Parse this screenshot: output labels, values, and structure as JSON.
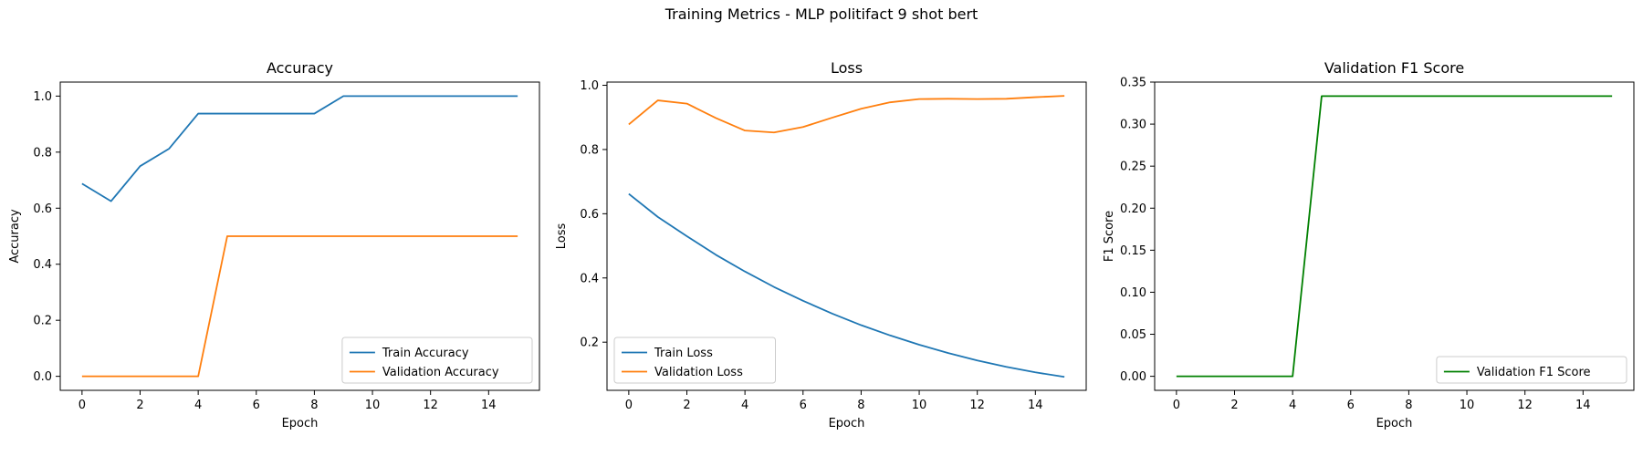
{
  "suptitle": "Training Metrics - MLP politifact 9 shot bert",
  "chart_data": [
    {
      "type": "line",
      "title": "Accuracy",
      "xlabel": "Epoch",
      "ylabel": "Accuracy",
      "xlim": [
        -0.75,
        15.75
      ],
      "ylim": [
        -0.05,
        1.05
      ],
      "xticks": [
        0,
        2,
        4,
        6,
        8,
        10,
        12,
        14
      ],
      "yticks": [
        0.0,
        0.2,
        0.4,
        0.6,
        0.8,
        1.0
      ],
      "ytick_labels": [
        "0.0",
        "0.2",
        "0.4",
        "0.6",
        "0.8",
        "1.0"
      ],
      "legend_loc": "lower-right",
      "grid": false,
      "series": [
        {
          "name": "Train Accuracy",
          "color": "#1f77b4",
          "x": [
            0,
            1,
            2,
            3,
            4,
            5,
            6,
            7,
            8,
            9,
            10,
            11,
            12,
            13,
            14,
            15
          ],
          "y": [
            0.6875,
            0.625,
            0.75,
            0.8125,
            0.9375,
            0.9375,
            0.9375,
            0.9375,
            0.9375,
            1.0,
            1.0,
            1.0,
            1.0,
            1.0,
            1.0,
            1.0
          ]
        },
        {
          "name": "Validation Accuracy",
          "color": "#ff7f0e",
          "x": [
            0,
            1,
            2,
            3,
            4,
            5,
            6,
            7,
            8,
            9,
            10,
            11,
            12,
            13,
            14,
            15
          ],
          "y": [
            0.0,
            0.0,
            0.0,
            0.0,
            0.0,
            0.5,
            0.5,
            0.5,
            0.5,
            0.5,
            0.5,
            0.5,
            0.5,
            0.5,
            0.5,
            0.5
          ]
        }
      ]
    },
    {
      "type": "line",
      "title": "Loss",
      "xlabel": "Epoch",
      "ylabel": "Loss",
      "xlim": [
        -0.75,
        15.75
      ],
      "ylim": [
        0.05,
        1.01
      ],
      "xticks": [
        0,
        2,
        4,
        6,
        8,
        10,
        12,
        14
      ],
      "yticks": [
        0.2,
        0.4,
        0.6,
        0.8,
        1.0
      ],
      "ytick_labels": [
        "0.2",
        "0.4",
        "0.6",
        "0.8",
        "1.0"
      ],
      "legend_loc": "lower-left",
      "grid": false,
      "series": [
        {
          "name": "Train Loss",
          "color": "#1f77b4",
          "x": [
            0,
            1,
            2,
            3,
            4,
            5,
            6,
            7,
            8,
            9,
            10,
            11,
            12,
            13,
            14,
            15
          ],
          "y": [
            0.662,
            0.59,
            0.53,
            0.472,
            0.42,
            0.372,
            0.329,
            0.289,
            0.253,
            0.221,
            0.192,
            0.166,
            0.143,
            0.123,
            0.106,
            0.092
          ]
        },
        {
          "name": "Validation Loss",
          "color": "#ff7f0e",
          "x": [
            0,
            1,
            2,
            3,
            4,
            5,
            6,
            7,
            8,
            9,
            10,
            11,
            12,
            13,
            14,
            15
          ],
          "y": [
            0.878,
            0.953,
            0.943,
            0.898,
            0.859,
            0.853,
            0.87,
            0.899,
            0.927,
            0.947,
            0.957,
            0.958,
            0.957,
            0.958,
            0.963,
            0.967
          ]
        }
      ]
    },
    {
      "type": "line",
      "title": "Validation F1 Score",
      "xlabel": "Epoch",
      "ylabel": "F1 Score",
      "xlim": [
        -0.75,
        15.75
      ],
      "ylim": [
        -0.0167,
        0.35
      ],
      "xticks": [
        0,
        2,
        4,
        6,
        8,
        10,
        12,
        14
      ],
      "yticks": [
        0.0,
        0.05,
        0.1,
        0.15,
        0.2,
        0.25,
        0.3,
        0.35
      ],
      "ytick_labels": [
        "0.00",
        "0.05",
        "0.10",
        "0.15",
        "0.20",
        "0.25",
        "0.30",
        "0.35"
      ],
      "legend_loc": "lower-right",
      "grid": false,
      "series": [
        {
          "name": "Validation F1 Score",
          "color": "#008000",
          "x": [
            0,
            1,
            2,
            3,
            4,
            5,
            6,
            7,
            8,
            9,
            10,
            11,
            12,
            13,
            14,
            15
          ],
          "y": [
            0.0,
            0.0,
            0.0,
            0.0,
            0.0,
            0.3333,
            0.3333,
            0.3333,
            0.3333,
            0.3333,
            0.3333,
            0.3333,
            0.3333,
            0.3333,
            0.3333,
            0.3333
          ]
        }
      ]
    }
  ]
}
